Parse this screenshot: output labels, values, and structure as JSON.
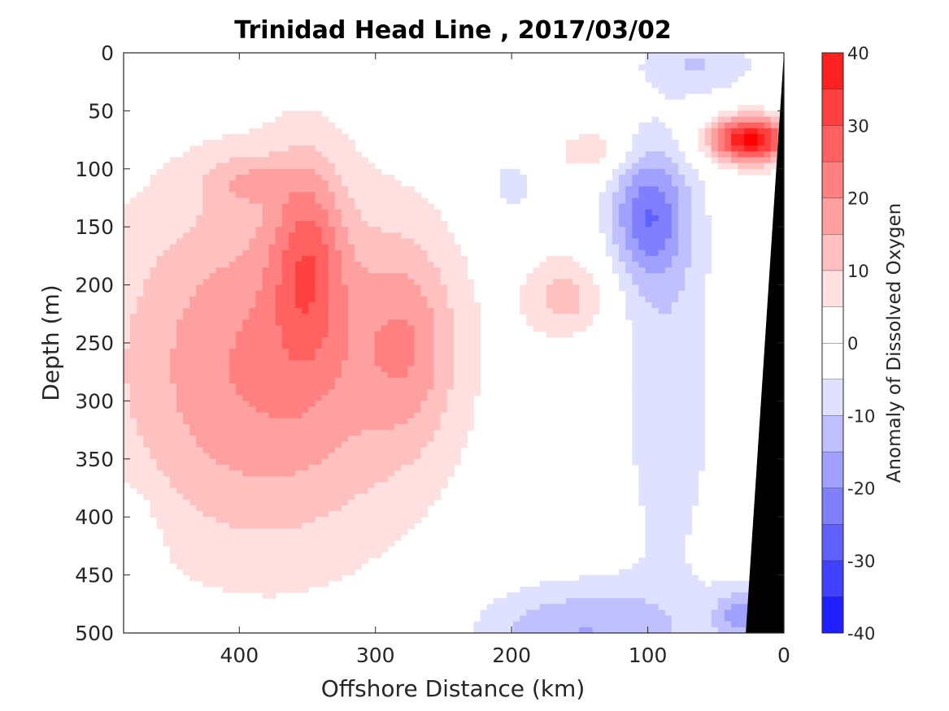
{
  "chart_data": {
    "type": "heatmap",
    "title": "Trinidad Head Line , 2017/03/02",
    "xlabel": "Offshore Distance (km)",
    "ylabel": "Depth (m)",
    "colorbar_label": "Anomaly of Dissolved Oxygen",
    "x_axis": {
      "range": [
        485,
        0
      ],
      "reversed": true,
      "ticks": [
        400,
        300,
        200,
        100,
        0
      ],
      "tick_labels": [
        "400",
        "300",
        "200",
        "100",
        "0"
      ]
    },
    "y_axis": {
      "range": [
        0,
        500
      ],
      "reversed": true,
      "ticks": [
        0,
        50,
        100,
        150,
        200,
        250,
        300,
        350,
        400,
        450,
        500
      ],
      "tick_labels": [
        "0",
        "50",
        "100",
        "150",
        "200",
        "250",
        "300",
        "350",
        "400",
        "450",
        "500"
      ]
    },
    "colorbar": {
      "range": [
        -40,
        40
      ],
      "levels": [
        -40,
        -35,
        -30,
        -25,
        -20,
        -15,
        -10,
        -5,
        0,
        5,
        10,
        15,
        20,
        25,
        30,
        35,
        40
      ],
      "colors": [
        "#0000ff",
        "#2020ff",
        "#4040ff",
        "#6060ff",
        "#8080ff",
        "#a0a0ff",
        "#c0c0ff",
        "#e0e0ff",
        "#ffffff",
        "#ffffff",
        "#ffe0e0",
        "#ffc0c0",
        "#ffa0a0",
        "#ff8080",
        "#ff6060",
        "#ff4040",
        "#ff2020",
        "#ff0000"
      ],
      "tick_values": [
        40,
        30,
        20,
        10,
        0,
        -10,
        -20,
        -30,
        -40
      ],
      "tick_labels": [
        "40",
        "30",
        "20",
        "10",
        "0",
        "-10",
        "-20",
        "-30",
        "-40"
      ]
    },
    "features": [
      {
        "kind": "positive",
        "x": 380,
        "y": 270,
        "sx": 120,
        "sy": 165,
        "amp": 21
      },
      {
        "kind": "positive",
        "x": 350,
        "y": 175,
        "sx": 26,
        "sy": 85,
        "amp": 16
      },
      {
        "kind": "positive",
        "x": 395,
        "y": 110,
        "sx": 32,
        "sy": 22,
        "amp": 8
      },
      {
        "kind": "positive",
        "x": 275,
        "y": 250,
        "sx": 35,
        "sy": 85,
        "amp": 11
      },
      {
        "kind": "positive",
        "x": 160,
        "y": 210,
        "sx": 30,
        "sy": 35,
        "amp": 12
      },
      {
        "kind": "positive",
        "x": 140,
        "y": 85,
        "sx": 25,
        "sy": 18,
        "amp": 10
      },
      {
        "kind": "positive",
        "x": 25,
        "y": 75,
        "sx": 30,
        "sy": 20,
        "amp": 42
      },
      {
        "kind": "negative",
        "x": 100,
        "y": 140,
        "sx": 28,
        "sy": 55,
        "amp": -20
      },
      {
        "kind": "negative",
        "x": 85,
        "y": 270,
        "sx": 38,
        "sy": 210,
        "amp": -9
      },
      {
        "kind": "negative",
        "x": 150,
        "y": 500,
        "sx": 80,
        "sy": 45,
        "amp": -15
      },
      {
        "kind": "negative",
        "x": 30,
        "y": 485,
        "sx": 22,
        "sy": 25,
        "amp": -16
      },
      {
        "kind": "negative",
        "x": 200,
        "y": 115,
        "sx": 18,
        "sy": 25,
        "amp": -9
      },
      {
        "kind": "negative",
        "x": 480,
        "y": 440,
        "sx": 18,
        "sy": 60,
        "amp": -8
      },
      {
        "kind": "negative",
        "x": 60,
        "y": 10,
        "sx": 45,
        "sy": 25,
        "amp": -9
      }
    ],
    "land_mask": {
      "description": "continental shelf/slope (black)",
      "surface_x": 0,
      "bottom_x": 28
    }
  }
}
